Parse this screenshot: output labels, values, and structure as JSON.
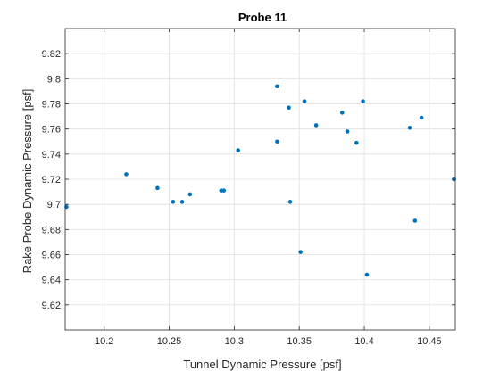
{
  "chart_data": {
    "type": "scatter",
    "title": "Probe 11",
    "xlabel": "Tunnel Dynamic Pressure [psf]",
    "ylabel": "Rake Probe Dynamic Pressure [psf]",
    "xlim": [
      10.17,
      10.47
    ],
    "ylim": [
      9.6,
      9.84
    ],
    "xticks": [
      10.2,
      10.25,
      10.3,
      10.35,
      10.4,
      10.45
    ],
    "xtick_labels": [
      "10.2",
      "10.25",
      "10.3",
      "10.35",
      "10.4",
      "10.45"
    ],
    "yticks": [
      9.62,
      9.64,
      9.66,
      9.68,
      9.7,
      9.72,
      9.74,
      9.76,
      9.78,
      9.8,
      9.82
    ],
    "ytick_labels": [
      "9.62",
      "9.64",
      "9.66",
      "9.68",
      "9.7",
      "9.72",
      "9.74",
      "9.76",
      "9.78",
      "9.8",
      "9.82"
    ],
    "grid": true,
    "marker_color": "#0072BD",
    "x": [
      10.171,
      10.217,
      10.241,
      10.253,
      10.26,
      10.266,
      10.29,
      10.292,
      10.303,
      10.333,
      10.333,
      10.342,
      10.343,
      10.351,
      10.354,
      10.363,
      10.383,
      10.387,
      10.394,
      10.399,
      10.402,
      10.435,
      10.439,
      10.444,
      10.469
    ],
    "y": [
      9.698,
      9.724,
      9.713,
      9.702,
      9.702,
      9.708,
      9.711,
      9.711,
      9.743,
      9.794,
      9.75,
      9.777,
      9.702,
      9.662,
      9.782,
      9.763,
      9.773,
      9.758,
      9.749,
      9.782,
      9.644,
      9.761,
      9.687,
      9.769,
      9.72
    ]
  }
}
